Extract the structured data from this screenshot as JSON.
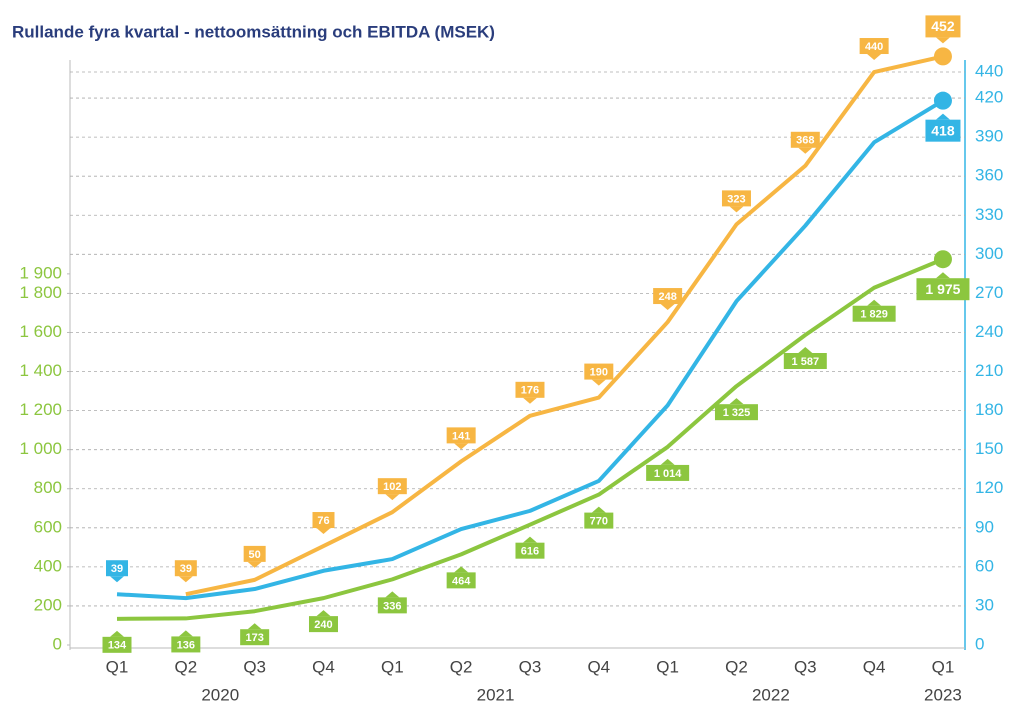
{
  "chart_data": {
    "type": "line",
    "title": "Rullande fyra kvartal - nettoomsättning och EBITDA (MSEK)",
    "categories": [
      "Q1",
      "Q2",
      "Q3",
      "Q4",
      "Q1",
      "Q2",
      "Q3",
      "Q4",
      "Q1",
      "Q2",
      "Q3",
      "Q4",
      "Q1"
    ],
    "year_labels": [
      "2020",
      "2021",
      "2022",
      "2023"
    ],
    "ylim": [
      0,
      3000
    ],
    "yticks": [
      0,
      200,
      400,
      600,
      800,
      {
        "value": 1000,
        "label": "1 000"
      },
      {
        "value": 1200,
        "label": "1 200"
      },
      {
        "value": 1400,
        "label": "1 400"
      },
      {
        "value": 1600,
        "label": "1 600"
      },
      {
        "value": 1800,
        "label": "1 800"
      },
      {
        "value": 1900,
        "label": "1 900"
      }
    ],
    "y2lim": [
      0,
      450
    ],
    "y2ticks": [
      0,
      30,
      60,
      90,
      120,
      150,
      180,
      210,
      240,
      270,
      300,
      330,
      360,
      390,
      420,
      440
    ],
    "grid": true,
    "series": [
      {
        "color": "#8cc63f",
        "axis": "y",
        "values": [
          134,
          136,
          173,
          240,
          336,
          464,
          616,
          770,
          1014,
          1325,
          1587,
          1829,
          1975
        ],
        "value_labels": [
          "134",
          "136",
          "173",
          "240",
          "336",
          "464",
          "616",
          "770",
          "1 014",
          "1 325",
          "1 587",
          "1 829",
          "1 975"
        ]
      },
      {
        "color": "#33b5e5",
        "axis": "y2",
        "values": [
          39,
          36,
          43,
          57,
          66,
          89,
          103,
          126,
          184,
          264,
          322,
          386,
          418
        ],
        "value_labels": [
          "39",
          null,
          null,
          null,
          null,
          null,
          null,
          null,
          null,
          null,
          null,
          null,
          "418"
        ]
      },
      {
        "color": "#f7b643",
        "axis": "y2",
        "values": [
          null,
          39,
          50,
          76,
          102,
          141,
          176,
          190,
          248,
          323,
          368,
          440,
          452
        ]
      }
    ]
  }
}
